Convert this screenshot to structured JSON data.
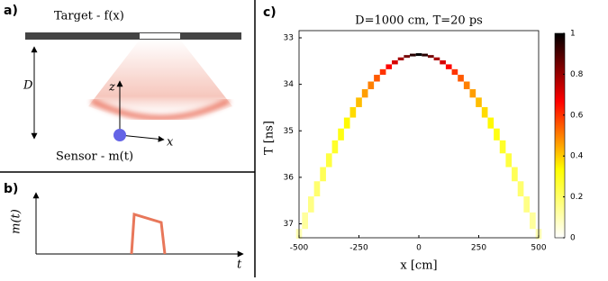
{
  "panels": {
    "a": {
      "label": "a)",
      "target": "Target - f(x)",
      "distance": "D",
      "z_axis": "z",
      "x_axis": "x",
      "sensor": "Sensor - m(t)"
    },
    "b": {
      "label": "b)",
      "y_axis": "m(t)",
      "x_axis": "t"
    },
    "c": {
      "label": "c)"
    }
  },
  "chart_data": {
    "type": "heatmap",
    "title": "D=1000 cm, T=20 ps",
    "xlabel": "x [cm]",
    "ylabel": "T [ns]",
    "x": [
      -500,
      -475,
      -450,
      -425,
      -400,
      -375,
      -350,
      -325,
      -300,
      -275,
      -250,
      -225,
      -200,
      -175,
      -150,
      -125,
      -100,
      -75,
      -50,
      -25,
      0,
      25,
      50,
      75,
      100,
      125,
      150,
      175,
      200,
      225,
      250,
      275,
      300,
      325,
      350,
      375,
      400,
      425,
      450,
      475,
      500
    ],
    "values": [
      37.29,
      36.93,
      36.58,
      36.24,
      35.93,
      35.63,
      35.34,
      35.07,
      34.83,
      34.6,
      34.38,
      34.19,
      34.02,
      33.86,
      33.73,
      33.62,
      33.52,
      33.45,
      33.4,
      33.37,
      33.36,
      33.37,
      33.4,
      33.45,
      33.52,
      33.62,
      33.73,
      33.86,
      34.02,
      34.19,
      34.38,
      34.6,
      34.83,
      35.07,
      35.34,
      35.63,
      35.93,
      36.24,
      36.58,
      36.93,
      37.29
    ],
    "intensity": [
      0.1,
      0.13,
      0.16,
      0.19,
      0.22,
      0.25,
      0.28,
      0.31,
      0.34,
      0.38,
      0.42,
      0.46,
      0.5,
      0.55,
      0.6,
      0.66,
      0.72,
      0.78,
      0.85,
      0.95,
      1,
      0.95,
      0.85,
      0.78,
      0.72,
      0.66,
      0.6,
      0.55,
      0.5,
      0.46,
      0.42,
      0.38,
      0.34,
      0.31,
      0.28,
      0.25,
      0.22,
      0.19,
      0.16,
      0.13,
      0.1
    ],
    "xlim": [
      -500,
      500
    ],
    "xticks": [
      -500,
      -250,
      0,
      250,
      500
    ],
    "ylim": [
      33,
      37.3
    ],
    "yticks": [
      33,
      34,
      35,
      36,
      37
    ],
    "y_inverted": true,
    "clim": [
      0,
      1
    ],
    "cticks": [
      0,
      0.2,
      0.4,
      0.6,
      0.8,
      1
    ],
    "colormap": [
      "#ffffff",
      "#ffff00",
      "#ff0000",
      "#000000"
    ]
  }
}
